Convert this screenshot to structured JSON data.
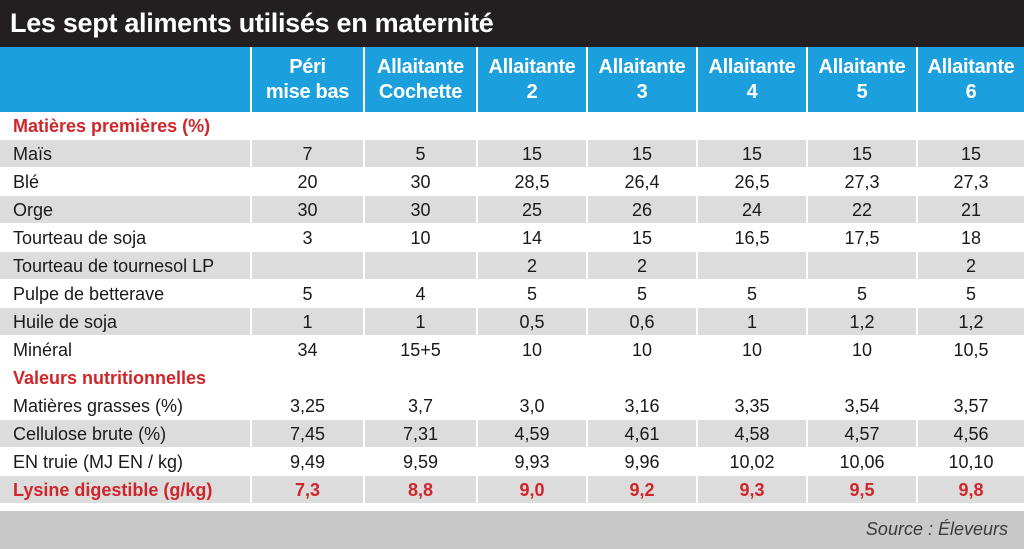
{
  "title": "Les sept aliments utilisés en maternité",
  "columns": [
    {
      "line1": "Péri",
      "line2": "mise bas"
    },
    {
      "line1": "Allaitante",
      "line2": "Cochette"
    },
    {
      "line1": "Allaitante",
      "line2": "2"
    },
    {
      "line1": "Allaitante",
      "line2": "3"
    },
    {
      "line1": "Allaitante",
      "line2": "4"
    },
    {
      "line1": "Allaitante",
      "line2": "5"
    },
    {
      "line1": "Allaitante",
      "line2": "6"
    }
  ],
  "section1": "Matières premières (%)",
  "raw_materials": [
    {
      "label": "Maïs",
      "values": [
        "7",
        "5",
        "15",
        "15",
        "15",
        "15",
        "15"
      ]
    },
    {
      "label": "Blé",
      "values": [
        "20",
        "30",
        "28,5",
        "26,4",
        "26,5",
        "27,3",
        "27,3"
      ]
    },
    {
      "label": "Orge",
      "values": [
        "30",
        "30",
        "25",
        "26",
        "24",
        "22",
        "21"
      ]
    },
    {
      "label": "Tourteau de soja",
      "values": [
        "3",
        "10",
        "14",
        "15",
        "16,5",
        "17,5",
        "18"
      ]
    },
    {
      "label": "Tourteau de tournesol LP",
      "values": [
        "",
        "",
        "2",
        "2",
        "",
        "",
        "2"
      ]
    },
    {
      "label": "Pulpe de betterave",
      "values": [
        "5",
        "4",
        "5",
        "5",
        "5",
        "5",
        "5"
      ]
    },
    {
      "label": "Huile de soja",
      "values": [
        "1",
        "1",
        "0,5",
        "0,6",
        "1",
        "1,2",
        "1,2"
      ]
    },
    {
      "label": "Minéral",
      "values": [
        "34",
        "15+5",
        "10",
        "10",
        "10",
        "10",
        "10,5"
      ]
    }
  ],
  "section2": "Valeurs nutritionnelles",
  "nutrition": [
    {
      "label": "Matières grasses (%)",
      "values": [
        "3,25",
        "3,7",
        "3,0",
        "3,16",
        "3,35",
        "3,54",
        "3,57"
      ]
    },
    {
      "label": "Cellulose brute (%)",
      "values": [
        "7,45",
        "7,31",
        "4,59",
        "4,61",
        "4,58",
        "4,57",
        "4,56"
      ]
    },
    {
      "label": "EN truie (MJ EN / kg)",
      "values": [
        "9,49",
        "9,59",
        "9,93",
        "9,96",
        "10,02",
        "10,06",
        "10,10"
      ]
    },
    {
      "label": "Lysine digestible (g/kg)",
      "values": [
        "7,3",
        "8,8",
        "9,0",
        "9,2",
        "9,3",
        "9,5",
        "9,8"
      ]
    }
  ],
  "source": "Source : Éleveurs",
  "colors": {
    "header_bg": "#1ba0dd",
    "title_bg": "#231f20",
    "accent_red": "#d0252a",
    "row_shade": "#dcdcdc"
  }
}
